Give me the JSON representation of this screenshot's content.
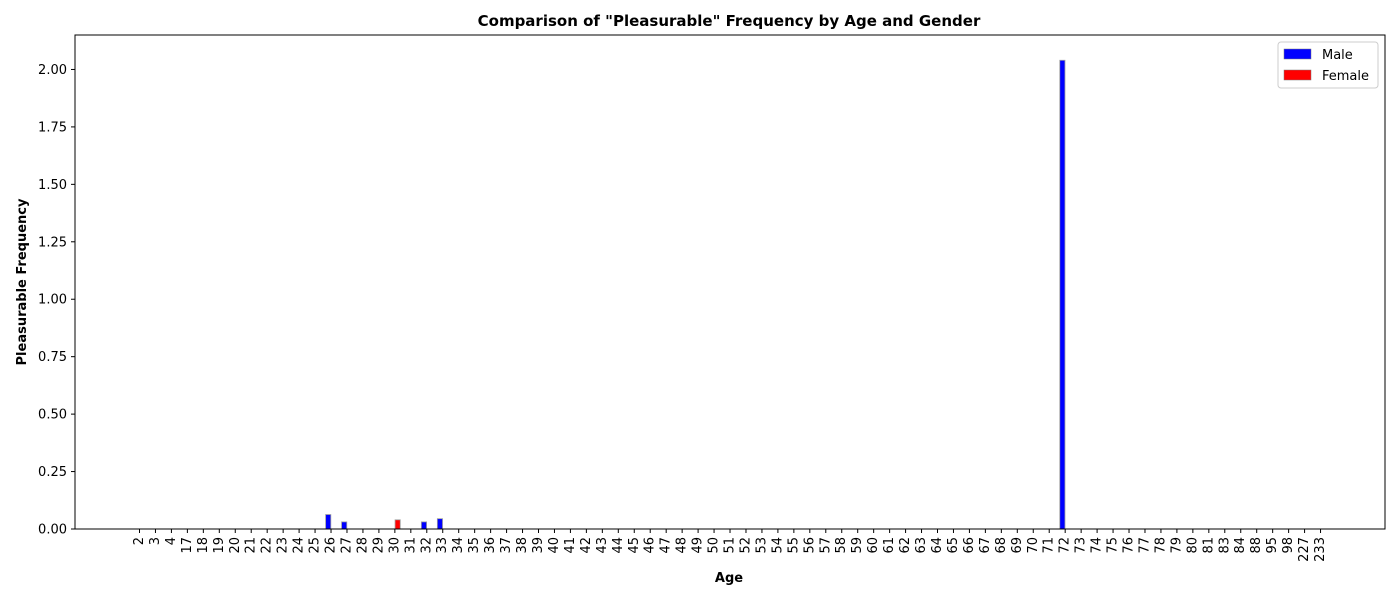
{
  "chart_data": {
    "type": "bar",
    "title": "Comparison of \"Pleasurable\" Frequency by Age and Gender",
    "xlabel": "Age",
    "ylabel": "Pleasurable Frequency",
    "ylim": [
      0,
      2.15
    ],
    "yticks": [
      "0.00",
      "0.25",
      "0.50",
      "0.75",
      "1.00",
      "1.25",
      "1.50",
      "1.75",
      "2.00"
    ],
    "grid": false,
    "legend_position": "top-right",
    "categories": [
      "2",
      "3",
      "4",
      "17",
      "18",
      "19",
      "20",
      "21",
      "22",
      "23",
      "24",
      "25",
      "26",
      "27",
      "28",
      "29",
      "30",
      "31",
      "32",
      "33",
      "34",
      "35",
      "36",
      "37",
      "38",
      "39",
      "40",
      "41",
      "42",
      "43",
      "44",
      "45",
      "46",
      "47",
      "48",
      "49",
      "50",
      "51",
      "52",
      "53",
      "54",
      "55",
      "56",
      "57",
      "58",
      "59",
      "60",
      "61",
      "62",
      "63",
      "64",
      "65",
      "66",
      "67",
      "68",
      "69",
      "70",
      "71",
      "72",
      "73",
      "74",
      "75",
      "76",
      "77",
      "78",
      "79",
      "80",
      "81",
      "83",
      "84",
      "88",
      "95",
      "98",
      "227",
      "233"
    ],
    "series": [
      {
        "name": "Male",
        "color": "#0000ff",
        "values": [
          0,
          0,
          0,
          0,
          0,
          0,
          0,
          0,
          0,
          0,
          0,
          0,
          0.063,
          0.031,
          0,
          0,
          0,
          0,
          0.031,
          0.045,
          0,
          0,
          0,
          0,
          0,
          0,
          0,
          0,
          0,
          0,
          0,
          0,
          0,
          0,
          0,
          0,
          0,
          0,
          0,
          0,
          0,
          0,
          0,
          0,
          0,
          0,
          0,
          0,
          0,
          0,
          0,
          0,
          0,
          0,
          0,
          0,
          0,
          0,
          2.04,
          0,
          0,
          0,
          0,
          0,
          0,
          0,
          0,
          0,
          0,
          0,
          0,
          0,
          0,
          0,
          0
        ]
      },
      {
        "name": "Female",
        "color": "#ff0000",
        "values": [
          0,
          0,
          0,
          0,
          0,
          0,
          0,
          0,
          0,
          0,
          0,
          0,
          0,
          0,
          0,
          0,
          0.04,
          0,
          0,
          0,
          0,
          0,
          0,
          0,
          0,
          0,
          0,
          0,
          0,
          0,
          0,
          0,
          0,
          0,
          0,
          0,
          0,
          0,
          0,
          0,
          0,
          0,
          0,
          0,
          0,
          0,
          0,
          0,
          0,
          0,
          0,
          0,
          0,
          0,
          0,
          0,
          0,
          0,
          0,
          0,
          0,
          0,
          0,
          0,
          0,
          0,
          0,
          0,
          0,
          0,
          0,
          0,
          0,
          0,
          0
        ]
      }
    ]
  }
}
